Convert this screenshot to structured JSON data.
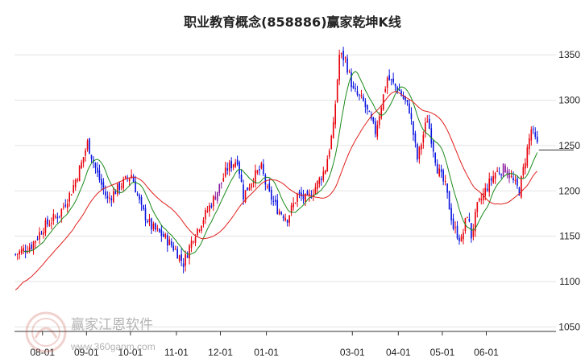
{
  "chart_data": {
    "type": "candlestick",
    "title": "职业教育概念(858886)赢家乾坤K线",
    "x_ticks": [
      "08-01",
      "09-01",
      "10-01",
      "11-01",
      "12-01",
      "01-01",
      "03-01",
      "04-01",
      "05-01",
      "06-01"
    ],
    "y_ticks": [
      1350,
      1300,
      1250,
      1200,
      1150,
      1100,
      1050
    ],
    "ylim": [
      1045,
      1375
    ],
    "last_price": 1245,
    "grid": true,
    "colors": {
      "up": "#e8000b",
      "down": "#0a14e0",
      "purple": "#8a1a9e",
      "fast_ma": "#1a8a1a",
      "slow_ma": "#e0201c"
    },
    "path_anchors": [
      [
        0,
        1130
      ],
      [
        8,
        1140
      ],
      [
        14,
        1160
      ],
      [
        22,
        1175
      ],
      [
        28,
        1200
      ],
      [
        33,
        1230
      ],
      [
        36,
        1253
      ],
      [
        41,
        1218
      ],
      [
        46,
        1190
      ],
      [
        52,
        1205
      ],
      [
        58,
        1218
      ],
      [
        63,
        1180
      ],
      [
        68,
        1160
      ],
      [
        74,
        1150
      ],
      [
        80,
        1135
      ],
      [
        84,
        1120
      ],
      [
        89,
        1150
      ],
      [
        94,
        1170
      ],
      [
        100,
        1195
      ],
      [
        106,
        1225
      ],
      [
        111,
        1235
      ],
      [
        114,
        1195
      ],
      [
        119,
        1215
      ],
      [
        123,
        1225
      ],
      [
        126,
        1200
      ],
      [
        131,
        1180
      ],
      [
        136,
        1170
      ],
      [
        141,
        1195
      ],
      [
        146,
        1190
      ],
      [
        151,
        1208
      ],
      [
        155,
        1225
      ],
      [
        159,
        1270
      ],
      [
        162,
        1350
      ],
      [
        165,
        1345
      ],
      [
        169,
        1310
      ],
      [
        174,
        1298
      ],
      [
        180,
        1265
      ],
      [
        186,
        1325
      ],
      [
        192,
        1310
      ],
      [
        197,
        1290
      ],
      [
        201,
        1235
      ],
      [
        206,
        1280
      ],
      [
        211,
        1225
      ],
      [
        215,
        1205
      ],
      [
        219,
        1160
      ],
      [
        223,
        1145
      ],
      [
        226,
        1175
      ],
      [
        228,
        1150
      ],
      [
        231,
        1182
      ],
      [
        236,
        1205
      ],
      [
        240,
        1220
      ],
      [
        245,
        1225
      ],
      [
        249,
        1210
      ],
      [
        252,
        1200
      ],
      [
        255,
        1235
      ],
      [
        258,
        1268
      ],
      [
        261,
        1250
      ]
    ],
    "watermark": {
      "name": "赢家江恩软件",
      "url": "www.360ganm.com"
    }
  }
}
